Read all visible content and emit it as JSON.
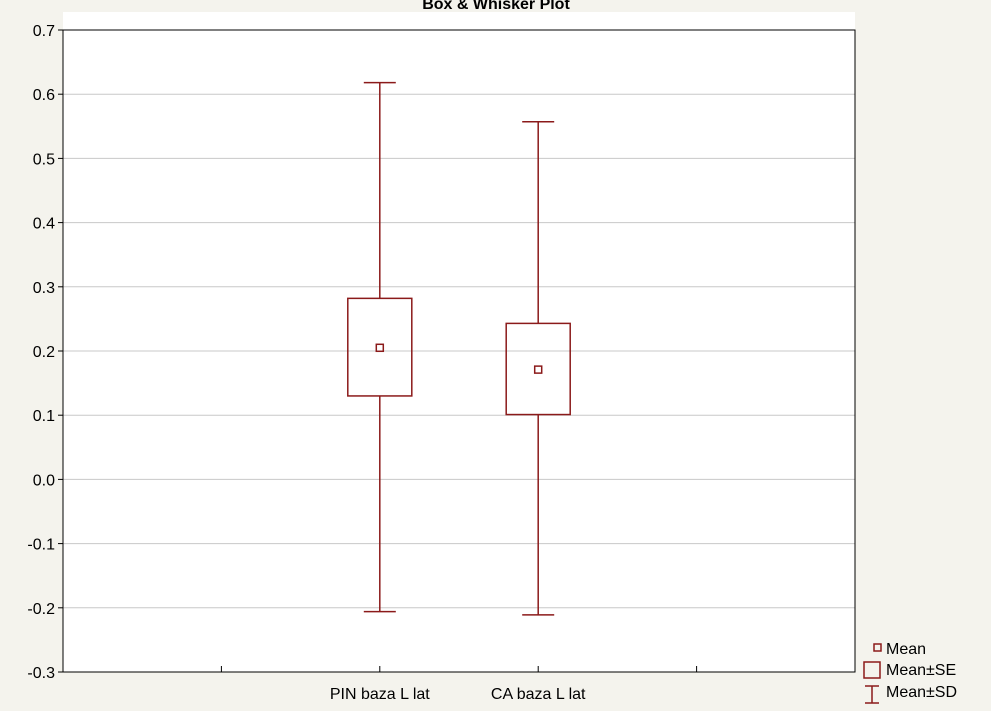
{
  "chart_data": {
    "type": "box",
    "title": "Box & Whisker Plot",
    "xlabel": "",
    "ylabel": "",
    "ylim": [
      -0.3,
      0.7
    ],
    "yticks": [
      "0.7",
      "0.6",
      "0.5",
      "0.4",
      "0.3",
      "0.2",
      "0.1",
      "0.0",
      "-0.1",
      "-0.2",
      "-0.3"
    ],
    "grid": true,
    "categories": [
      "PIN baza L lat",
      "CA baza L lat"
    ],
    "series": [
      {
        "category": "PIN baza L lat",
        "mean": 0.205,
        "se_low": 0.13,
        "se_high": 0.282,
        "sd_low": -0.206,
        "sd_high": 0.618
      },
      {
        "category": "CA baza L lat",
        "mean": 0.171,
        "se_low": 0.101,
        "se_high": 0.243,
        "sd_low": -0.211,
        "sd_high": 0.557
      }
    ],
    "legend": {
      "position": "bottom-right",
      "items": [
        "Mean",
        "Mean±SE",
        "Mean±SD"
      ]
    },
    "colors": {
      "series": "#8b1a1a",
      "plot_background": "#ffffff",
      "page_background": "#f4f3ed",
      "grid": "#c8c8c8"
    }
  }
}
